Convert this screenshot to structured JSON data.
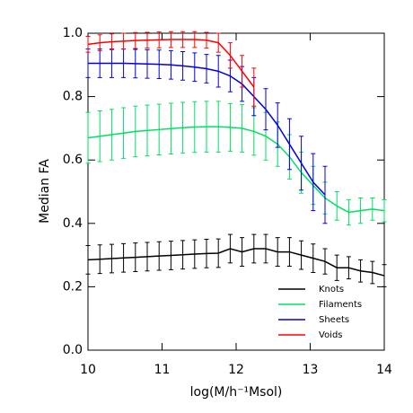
{
  "chart_data": {
    "type": "line",
    "x_label": "log(M/h⁻¹Msol)",
    "y_label": "Median FA",
    "x": [
      10.0,
      10.16,
      10.32,
      10.48,
      10.64,
      10.8,
      10.96,
      11.12,
      11.28,
      11.44,
      11.6,
      11.76,
      11.92,
      12.08,
      12.24,
      12.4,
      12.56,
      12.72,
      12.88,
      13.04,
      13.2,
      13.36,
      13.52,
      13.68,
      13.84,
      14.0
    ],
    "series": [
      {
        "name": "Knots",
        "color": "#000000",
        "values": [
          0.285,
          0.287,
          0.289,
          0.291,
          0.293,
          0.295,
          0.297,
          0.299,
          0.301,
          0.303,
          0.305,
          0.306,
          0.32,
          0.31,
          0.32,
          0.32,
          0.31,
          0.31,
          0.3,
          0.29,
          0.28,
          0.26,
          0.26,
          0.25,
          0.245,
          0.235
        ],
        "errors": [
          0.045,
          0.045,
          0.045,
          0.045,
          0.045,
          0.045,
          0.045,
          0.045,
          0.045,
          0.045,
          0.045,
          0.045,
          0.045,
          0.045,
          0.045,
          0.045,
          0.045,
          0.045,
          0.045,
          0.045,
          0.04,
          0.04,
          0.035,
          0.035,
          0.035,
          0.035
        ]
      },
      {
        "name": "Filaments",
        "color": "#00e060",
        "values": [
          0.67,
          0.675,
          0.68,
          0.685,
          0.69,
          0.693,
          0.696,
          0.699,
          0.702,
          0.704,
          0.705,
          0.705,
          0.703,
          0.7,
          0.69,
          0.675,
          0.65,
          0.61,
          0.56,
          0.52,
          0.48,
          0.455,
          0.435,
          0.44,
          0.445,
          0.44
        ],
        "errors": [
          0.08,
          0.08,
          0.08,
          0.08,
          0.08,
          0.08,
          0.08,
          0.08,
          0.08,
          0.08,
          0.08,
          0.08,
          0.075,
          0.075,
          0.075,
          0.075,
          0.07,
          0.07,
          0.065,
          0.06,
          0.05,
          0.045,
          0.04,
          0.04,
          0.035,
          0.035
        ]
      },
      {
        "name": "Sheets",
        "color": "#0000e0",
        "values": [
          0.905,
          0.905,
          0.905,
          0.905,
          0.904,
          0.903,
          0.902,
          0.9,
          0.897,
          0.893,
          0.888,
          0.88,
          0.865,
          0.84,
          0.8,
          0.76,
          0.71,
          0.65,
          0.59,
          0.53,
          0.49,
          null,
          null,
          null,
          null,
          null
        ],
        "errors": [
          0.045,
          0.045,
          0.045,
          0.045,
          0.045,
          0.045,
          0.045,
          0.045,
          0.045,
          0.045,
          0.045,
          0.05,
          0.05,
          0.055,
          0.06,
          0.065,
          0.07,
          0.08,
          0.085,
          0.09,
          0.09,
          null,
          null,
          null,
          null,
          null
        ]
      },
      {
        "name": "Voids",
        "color": "#ff0000",
        "values": [
          0.965,
          0.97,
          0.973,
          0.975,
          0.977,
          0.978,
          0.979,
          0.98,
          0.98,
          0.98,
          0.978,
          0.97,
          0.93,
          0.88,
          0.83,
          null,
          null,
          null,
          null,
          null,
          null,
          null,
          null,
          null,
          null,
          null
        ],
        "errors": [
          0.025,
          0.025,
          0.025,
          0.025,
          0.025,
          0.025,
          0.025,
          0.025,
          0.025,
          0.025,
          0.025,
          0.03,
          0.04,
          0.05,
          0.06,
          null,
          null,
          null,
          null,
          null,
          null,
          null,
          null,
          null,
          null,
          null
        ]
      }
    ],
    "xlim": [
      10,
      14
    ],
    "xticks": [
      10,
      11,
      12,
      13,
      14
    ],
    "ylim": [
      0,
      1
    ],
    "yticks": [
      {
        "value": 0,
        "label": "0.0"
      },
      0.2,
      0.4,
      0.6,
      0.8,
      {
        "value": 1,
        "label": "1.0"
      }
    ],
    "legend": "lower right"
  }
}
